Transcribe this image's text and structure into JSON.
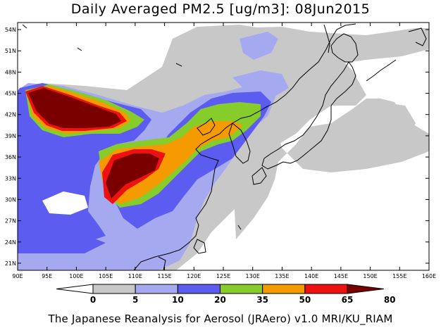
{
  "title": "Daily Averaged PM2.5 [ug/m3]: 08Jun2015",
  "footer": "The Japanese Reanalysis for Aerosol (JRAero) v1.0 MRI/KU_RIAM",
  "map": {
    "lon_range": [
      90,
      160
    ],
    "lat_range": [
      20,
      55
    ],
    "x_ticks": [
      "90E",
      "95E",
      "100E",
      "105E",
      "110E",
      "115E",
      "120E",
      "125E",
      "130E",
      "135E",
      "140E",
      "145E",
      "150E",
      "155E",
      "160E"
    ],
    "y_ticks": [
      "21N",
      "24N",
      "27N",
      "30N",
      "33N",
      "36N",
      "39N",
      "42N",
      "45N",
      "48N",
      "51N",
      "54N"
    ]
  },
  "colorbar": {
    "labels": [
      "0",
      "5",
      "10",
      "20",
      "35",
      "50",
      "65",
      "80"
    ],
    "colors": [
      "#ffffff",
      "#c8c8c8",
      "#a5a9f0",
      "#5c5cf0",
      "#86cd2c",
      "#f59a00",
      "#ee1111",
      "#7a0000"
    ]
  }
}
